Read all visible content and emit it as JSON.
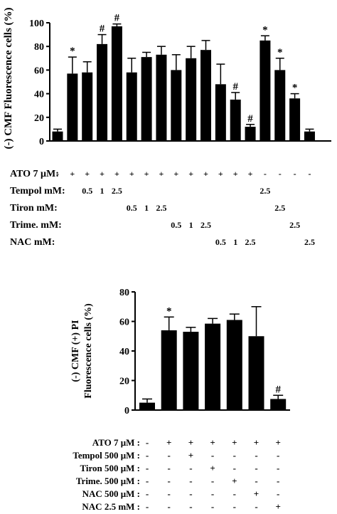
{
  "chart_data": [
    {
      "type": "bar",
      "ylabel": "(-) CMF Fluorescence cells (%)",
      "ylim": [
        0,
        100
      ],
      "yticks": [
        0,
        20,
        40,
        60,
        80,
        100
      ],
      "bar_color": "#000000",
      "values": [
        8,
        57,
        58,
        82,
        97,
        58,
        71,
        73,
        60,
        70,
        77,
        48,
        35,
        12,
        85,
        60,
        36,
        8
      ],
      "errors": [
        2,
        14,
        9,
        8,
        2,
        12,
        4,
        7,
        13,
        10,
        8,
        17,
        6,
        2,
        4,
        10,
        4,
        2
      ],
      "annotations": [
        "",
        "*",
        "",
        "#",
        "#",
        "",
        "",
        "",
        "",
        "",
        "",
        "",
        "#",
        "#",
        "*",
        "*",
        "*",
        ""
      ],
      "conditions": [
        {
          "label": "ATO 7 μM:",
          "cells": [
            "-",
            "+",
            "+",
            "+",
            "+",
            "+",
            "+",
            "+",
            "+",
            "+",
            "+",
            "+",
            "+",
            "+",
            "-",
            "-",
            "-",
            "-"
          ]
        },
        {
          "label": "Tempol mM:",
          "cells": [
            "",
            "",
            "0.5",
            "1",
            "2.5",
            "",
            "",
            "",
            "",
            "",
            "",
            "",
            "",
            "",
            "2.5",
            "",
            "",
            ""
          ]
        },
        {
          "label": "Tiron mM:",
          "cells": [
            "",
            "",
            "",
            "",
            "",
            "0.5",
            "1",
            "2.5",
            "",
            "",
            "",
            "",
            "",
            "",
            "",
            "2.5",
            "",
            ""
          ]
        },
        {
          "label": "Trime. mM:",
          "cells": [
            "",
            "",
            "",
            "",
            "",
            "",
            "",
            "",
            "0.5",
            "1",
            "2.5",
            "",
            "",
            "",
            "",
            "",
            "2.5",
            ""
          ]
        },
        {
          "label": "NAC mM:",
          "cells": [
            "",
            "",
            "",
            "",
            "",
            "",
            "",
            "",
            "",
            "",
            "",
            "0.5",
            "1",
            "2.5",
            "",
            "",
            "",
            "2.5"
          ]
        }
      ]
    },
    {
      "type": "bar",
      "ylabel_line1": "(-) CMF (+) PI",
      "ylabel_line2": "Fluorescence  cells  (%)",
      "ylim": [
        0,
        80
      ],
      "yticks": [
        0,
        20,
        40,
        60,
        80
      ],
      "bar_color": "#000000",
      "values": [
        5,
        54,
        53,
        58.5,
        61,
        50,
        7.5
      ],
      "errors": [
        2.5,
        9,
        3,
        3.5,
        4,
        20,
        2.5
      ],
      "annotations": [
        "",
        "*",
        "",
        "",
        "",
        "",
        "#"
      ],
      "conditions": [
        {
          "label": "ATO 7 μM :",
          "cells": [
            "-",
            "+",
            "+",
            "+",
            "+",
            "+",
            "+"
          ]
        },
        {
          "label": "Tempol 500 μM :",
          "cells": [
            "-",
            "-",
            "+",
            "-",
            "-",
            "-",
            "-"
          ]
        },
        {
          "label": "Tiron 500 μM :",
          "cells": [
            "-",
            "-",
            "-",
            "+",
            "-",
            "-",
            "-"
          ]
        },
        {
          "label": "Trime. 500 μM :",
          "cells": [
            "-",
            "-",
            "-",
            "-",
            "+",
            "-",
            "-"
          ]
        },
        {
          "label": "NAC 500 μM :",
          "cells": [
            "-",
            "-",
            "-",
            "-",
            "-",
            "+",
            "-"
          ]
        },
        {
          "label": "NAC 2.5 mM :",
          "cells": [
            "-",
            "-",
            "-",
            "-",
            "-",
            "-",
            "+"
          ]
        }
      ]
    }
  ]
}
